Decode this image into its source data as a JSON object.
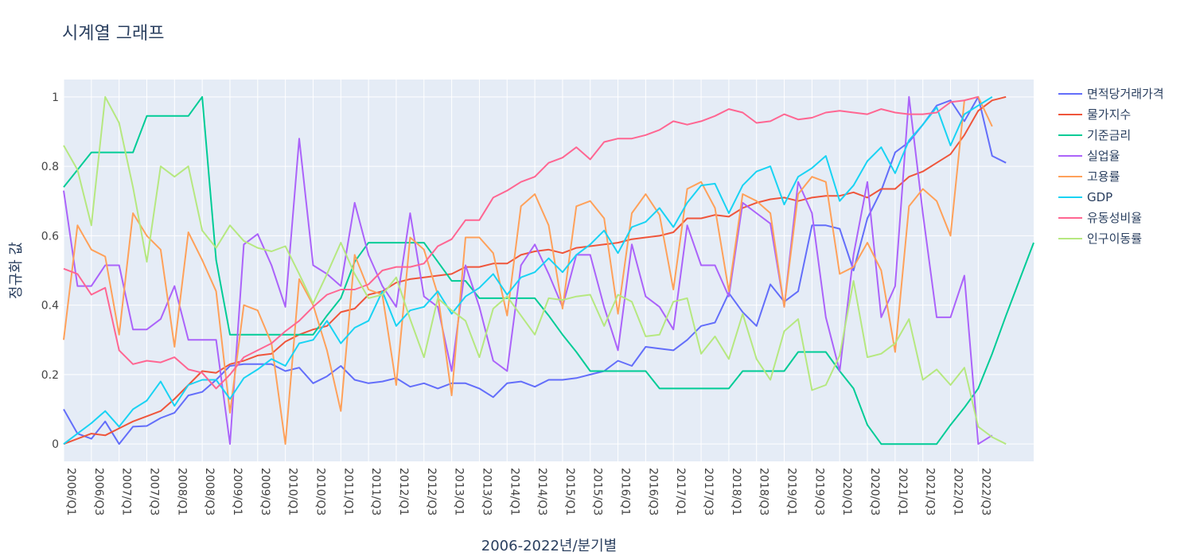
{
  "chart_data": {
    "type": "line",
    "title": "시계열 그래프",
    "xlabel": "2006-2022년/분기별",
    "ylabel": "정규화 값",
    "ylim": [
      -0.05,
      1.05
    ],
    "yticks": [
      0,
      0.2,
      0.4,
      0.6,
      0.8,
      1
    ],
    "ytick_labels": [
      "0",
      "0.2",
      "0.4",
      "0.6",
      "0.8",
      "1"
    ],
    "x_tick_labels": [
      "2006/Q1",
      "2006/Q3",
      "2007/Q1",
      "2007/Q3",
      "2008/Q1",
      "2008/Q3",
      "2009/Q1",
      "2009/Q3",
      "2010/Q1",
      "2010/Q3",
      "2011/Q1",
      "2011/Q3",
      "2012/Q1",
      "2012/Q3",
      "2013/Q1",
      "2013/Q3",
      "2014/Q1",
      "2014/Q3",
      "2015/Q1",
      "2015/Q3",
      "2016/Q1",
      "2016/Q3",
      "2017/Q1",
      "2017/Q3",
      "2018/Q1",
      "2018/Q3",
      "2019/Q1",
      "2019/Q3",
      "2020/Q1",
      "2020/Q3",
      "2021/Q1",
      "2021/Q3",
      "2022/Q1",
      "2022/Q3"
    ],
    "legend_position": "top-right",
    "series": [
      {
        "name": "면적당거래가격",
        "color": "#636efa",
        "values": [
          0.1,
          0.03,
          0.015,
          0.065,
          0.0,
          0.05,
          0.052,
          0.075,
          0.09,
          0.14,
          0.15,
          0.185,
          0.225,
          0.23,
          0.23,
          0.23,
          0.21,
          0.22,
          0.175,
          0.195,
          0.225,
          0.185,
          0.175,
          0.18,
          0.19,
          0.165,
          0.175,
          0.16,
          0.175,
          0.175,
          0.16,
          0.135,
          0.175,
          0.18,
          0.165,
          0.185,
          0.185,
          0.19,
          0.2,
          0.21,
          0.24,
          0.225,
          0.28,
          0.275,
          0.27,
          0.3,
          0.34,
          0.35,
          0.435,
          0.38,
          0.34,
          0.46,
          0.41,
          0.44,
          0.63,
          0.63,
          0.62,
          0.5,
          0.65,
          0.73,
          0.84,
          0.87,
          0.92,
          0.975,
          0.99,
          0.93,
          1.0,
          0.83,
          0.81
        ]
      },
      {
        "name": "물가지수",
        "color": "#ef553b",
        "values": [
          0.0,
          0.015,
          0.03,
          0.025,
          0.045,
          0.065,
          0.08,
          0.095,
          0.13,
          0.17,
          0.21,
          0.205,
          0.23,
          0.24,
          0.255,
          0.26,
          0.295,
          0.315,
          0.33,
          0.34,
          0.38,
          0.39,
          0.43,
          0.44,
          0.465,
          0.475,
          0.48,
          0.485,
          0.49,
          0.51,
          0.51,
          0.52,
          0.52,
          0.545,
          0.555,
          0.56,
          0.55,
          0.565,
          0.57,
          0.575,
          0.58,
          0.59,
          0.595,
          0.6,
          0.61,
          0.65,
          0.65,
          0.66,
          0.655,
          0.68,
          0.695,
          0.705,
          0.71,
          0.7,
          0.71,
          0.715,
          0.715,
          0.725,
          0.71,
          0.735,
          0.735,
          0.77,
          0.785,
          0.81,
          0.835,
          0.89,
          0.96,
          0.99,
          1.0
        ]
      },
      {
        "name": "기준금리",
        "color": "#00cc96",
        "values": [
          0.74,
          0.79,
          0.84,
          0.84,
          0.84,
          0.84,
          0.945,
          0.945,
          0.945,
          0.945,
          1.0,
          0.53,
          0.315,
          0.315,
          0.315,
          0.315,
          0.315,
          0.315,
          0.315,
          0.37,
          0.42,
          0.525,
          0.58,
          0.58,
          0.58,
          0.58,
          0.58,
          0.525,
          0.47,
          0.47,
          0.42,
          0.42,
          0.42,
          0.42,
          0.42,
          0.37,
          0.315,
          0.265,
          0.21,
          0.21,
          0.21,
          0.21,
          0.21,
          0.16,
          0.16,
          0.16,
          0.16,
          0.16,
          0.16,
          0.21,
          0.21,
          0.21,
          0.21,
          0.265,
          0.265,
          0.265,
          0.21,
          0.16,
          0.055,
          0.0,
          0.0,
          0.0,
          0.0,
          0.0,
          0.055,
          0.105,
          0.16,
          0.26,
          0.37,
          0.475,
          0.58
        ]
      },
      {
        "name": "실업율",
        "color": "#ab63fa",
        "values": [
          0.73,
          0.455,
          0.455,
          0.515,
          0.515,
          0.33,
          0.33,
          0.36,
          0.455,
          0.3,
          0.3,
          0.3,
          0.0,
          0.575,
          0.605,
          0.515,
          0.395,
          0.88,
          0.515,
          0.49,
          0.455,
          0.695,
          0.545,
          0.455,
          0.395,
          0.665,
          0.425,
          0.395,
          0.21,
          0.515,
          0.395,
          0.24,
          0.21,
          0.515,
          0.575,
          0.49,
          0.395,
          0.545,
          0.545,
          0.395,
          0.27,
          0.575,
          0.425,
          0.395,
          0.33,
          0.63,
          0.515,
          0.515,
          0.425,
          0.695,
          0.665,
          0.635,
          0.395,
          0.755,
          0.665,
          0.365,
          0.21,
          0.545,
          0.755,
          0.365,
          0.455,
          1.0,
          0.665,
          0.365,
          0.365,
          0.485,
          0.0,
          0.025
        ]
      },
      {
        "name": "고용률",
        "color": "#ffa15a",
        "values": [
          0.3,
          0.63,
          0.56,
          0.54,
          0.315,
          0.665,
          0.6,
          0.56,
          0.28,
          0.61,
          0.53,
          0.44,
          0.09,
          0.4,
          0.385,
          0.29,
          0.0,
          0.475,
          0.4,
          0.27,
          0.095,
          0.545,
          0.445,
          0.43,
          0.17,
          0.595,
          0.56,
          0.43,
          0.14,
          0.595,
          0.595,
          0.55,
          0.37,
          0.685,
          0.72,
          0.63,
          0.39,
          0.685,
          0.7,
          0.65,
          0.375,
          0.665,
          0.72,
          0.66,
          0.445,
          0.735,
          0.755,
          0.68,
          0.44,
          0.72,
          0.7,
          0.665,
          0.395,
          0.72,
          0.77,
          0.755,
          0.49,
          0.51,
          0.58,
          0.5,
          0.265,
          0.685,
          0.735,
          0.7,
          0.6,
          0.99,
          1.0,
          0.915
        ]
      },
      {
        "name": "GDP",
        "color": "#19d3f3",
        "values": [
          0.0,
          0.03,
          0.06,
          0.095,
          0.05,
          0.1,
          0.125,
          0.18,
          0.11,
          0.17,
          0.185,
          0.185,
          0.13,
          0.19,
          0.215,
          0.245,
          0.225,
          0.29,
          0.3,
          0.355,
          0.29,
          0.335,
          0.355,
          0.44,
          0.34,
          0.385,
          0.395,
          0.44,
          0.375,
          0.425,
          0.45,
          0.49,
          0.43,
          0.48,
          0.495,
          0.535,
          0.495,
          0.545,
          0.575,
          0.615,
          0.55,
          0.625,
          0.64,
          0.68,
          0.625,
          0.695,
          0.745,
          0.75,
          0.665,
          0.745,
          0.785,
          0.8,
          0.69,
          0.77,
          0.795,
          0.83,
          0.7,
          0.745,
          0.815,
          0.855,
          0.78,
          0.875,
          0.92,
          0.97,
          0.86,
          0.95,
          0.975,
          1.0
        ]
      },
      {
        "name": "유동성비율",
        "color": "#ff6692",
        "values": [
          0.505,
          0.49,
          0.43,
          0.45,
          0.27,
          0.23,
          0.24,
          0.235,
          0.25,
          0.215,
          0.205,
          0.16,
          0.2,
          0.25,
          0.27,
          0.29,
          0.325,
          0.355,
          0.395,
          0.43,
          0.445,
          0.445,
          0.46,
          0.5,
          0.51,
          0.51,
          0.52,
          0.57,
          0.59,
          0.645,
          0.645,
          0.71,
          0.73,
          0.755,
          0.77,
          0.81,
          0.825,
          0.855,
          0.82,
          0.87,
          0.88,
          0.88,
          0.89,
          0.905,
          0.93,
          0.92,
          0.93,
          0.945,
          0.965,
          0.955,
          0.925,
          0.93,
          0.95,
          0.935,
          0.94,
          0.955,
          0.96,
          0.955,
          0.95,
          0.965,
          0.955,
          0.95,
          0.95,
          0.955,
          0.985,
          0.99,
          1.0
        ]
      },
      {
        "name": "인구이동률",
        "color": "#b6e880",
        "values": [
          0.86,
          0.79,
          0.63,
          1.0,
          0.925,
          0.74,
          0.525,
          0.8,
          0.77,
          0.8,
          0.615,
          0.565,
          0.63,
          0.585,
          0.565,
          0.555,
          0.57,
          0.49,
          0.405,
          0.49,
          0.58,
          0.49,
          0.42,
          0.43,
          0.48,
          0.36,
          0.25,
          0.42,
          0.385,
          0.355,
          0.25,
          0.39,
          0.425,
          0.37,
          0.315,
          0.42,
          0.415,
          0.425,
          0.43,
          0.34,
          0.43,
          0.41,
          0.31,
          0.315,
          0.41,
          0.42,
          0.26,
          0.31,
          0.245,
          0.375,
          0.245,
          0.185,
          0.325,
          0.36,
          0.155,
          0.17,
          0.255,
          0.47,
          0.25,
          0.26,
          0.29,
          0.36,
          0.185,
          0.215,
          0.17,
          0.22,
          0.05,
          0.02,
          0.0
        ]
      }
    ]
  }
}
